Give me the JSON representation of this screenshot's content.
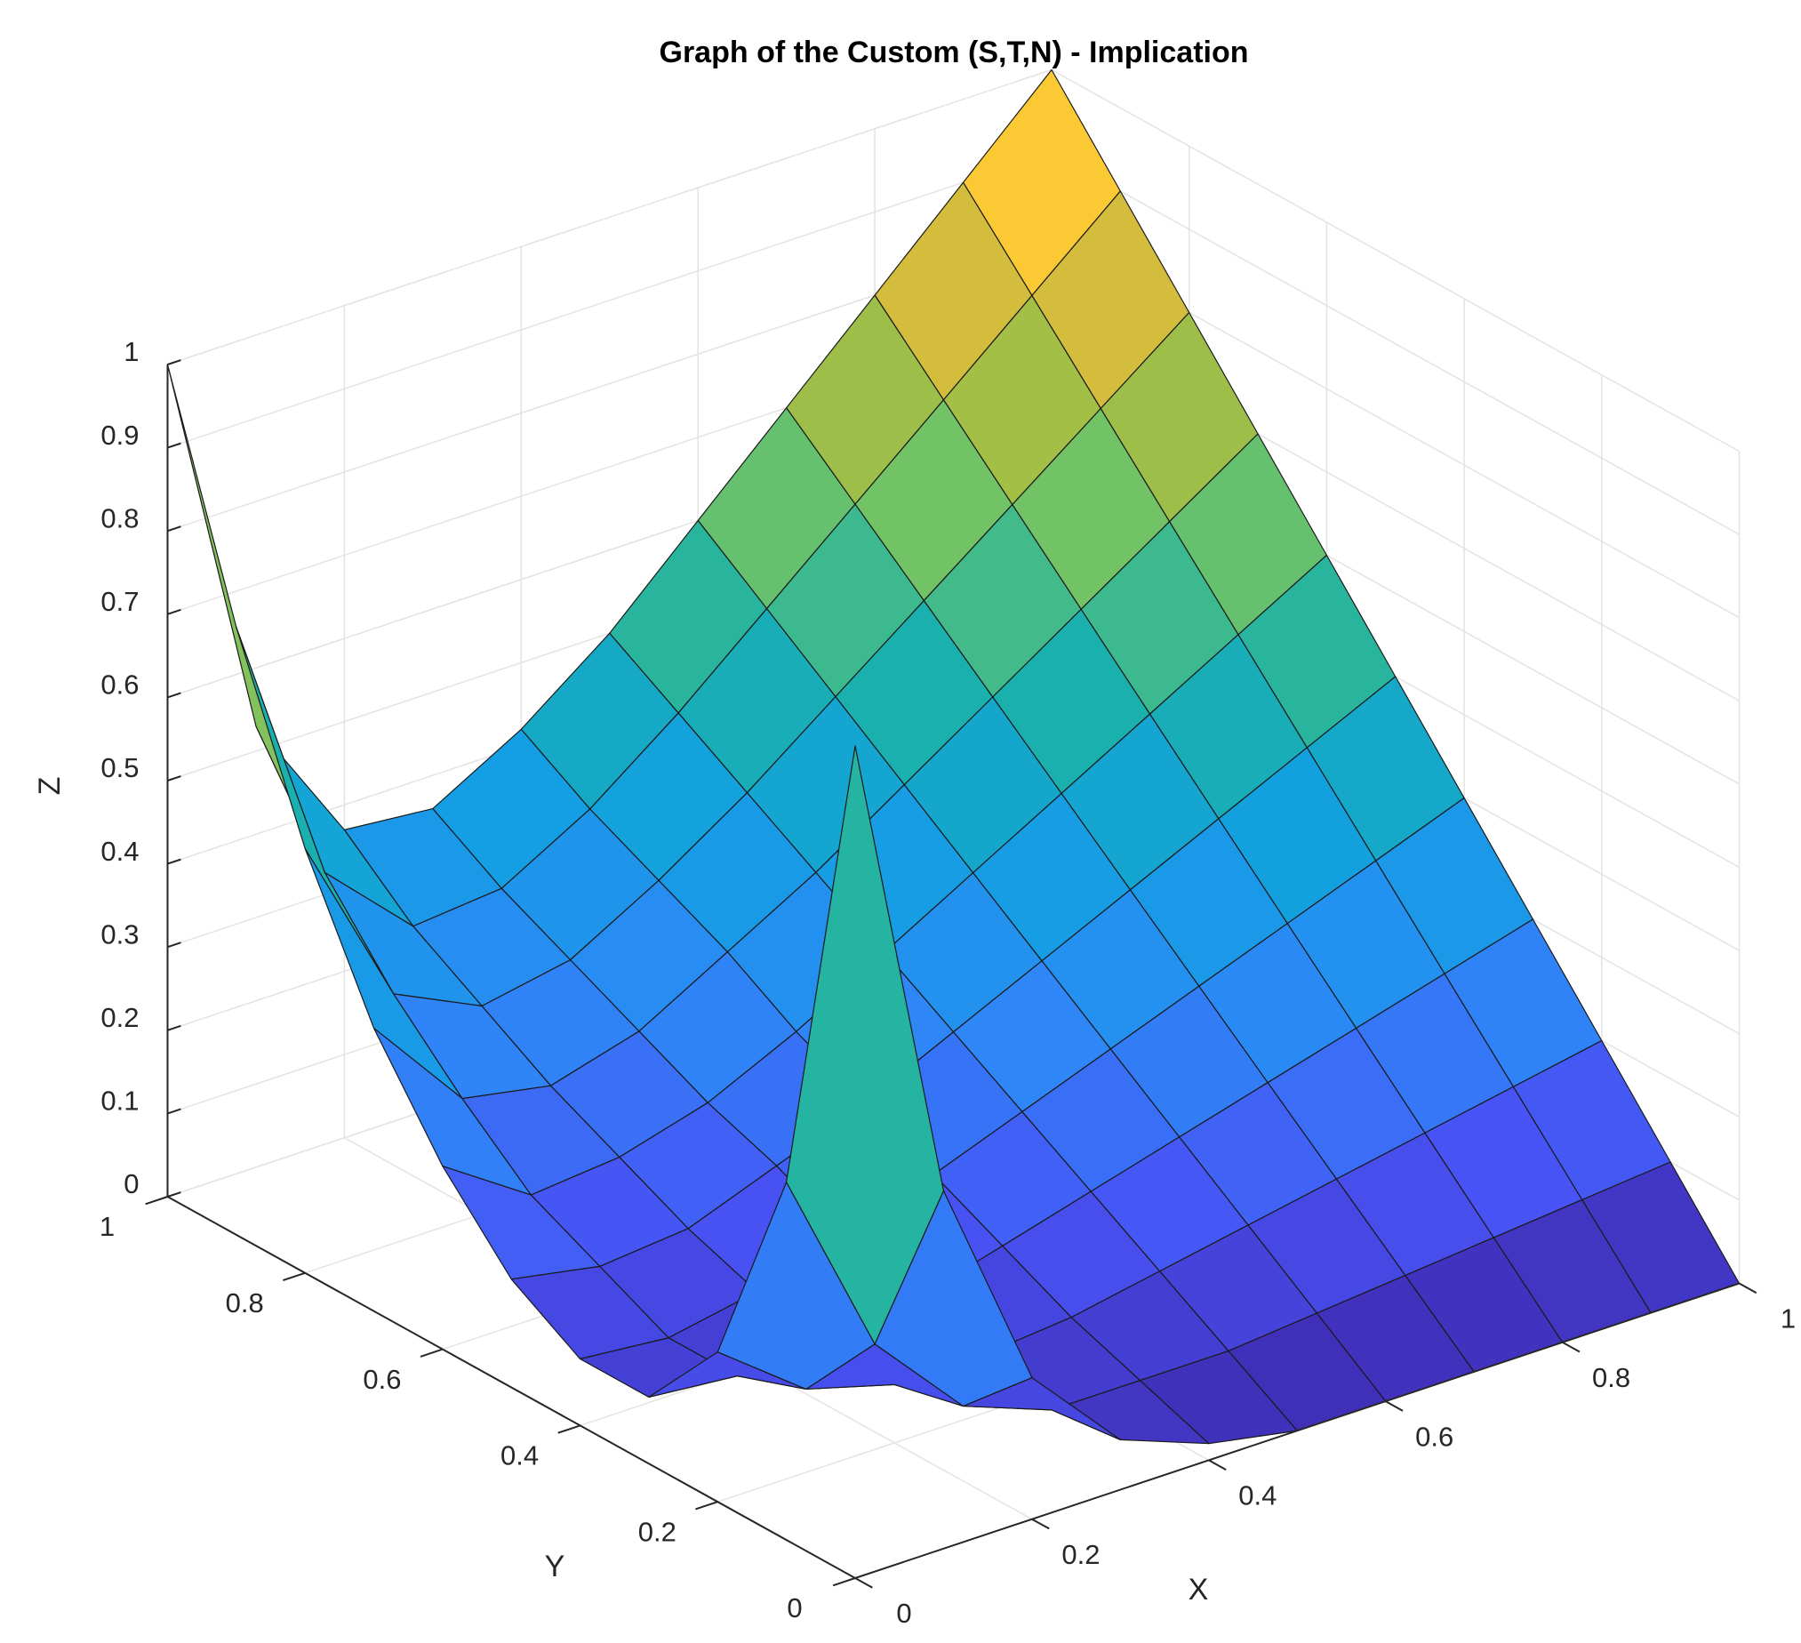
{
  "chart_data": {
    "type": "surface",
    "title": "Graph of the Custom (S,T,N) - Implication",
    "xlabel": "X",
    "ylabel": "Y",
    "zlabel": "Z",
    "x": [
      0,
      0.1,
      0.2,
      0.3,
      0.4,
      0.5,
      0.6,
      0.7,
      0.8,
      0.9,
      1
    ],
    "y": [
      0,
      0.1,
      0.2,
      0.3,
      0.4,
      0.5,
      0.6,
      0.7,
      0.8,
      0.9,
      1
    ],
    "z": [
      [
        1,
        0.43,
        0.17,
        0.06,
        0.02,
        0,
        0,
        0,
        0,
        0,
        0
      ],
      [
        0.43,
        0.2,
        0.09,
        0.05,
        0.05,
        0.05,
        0.06,
        0.07,
        0.08,
        0.09,
        0.1
      ],
      [
        0.18,
        0.1,
        0.07,
        0.07,
        0.08,
        0.1,
        0.12,
        0.14,
        0.16,
        0.18,
        0.2
      ],
      [
        0.08,
        0.07,
        0.07,
        0.09,
        0.12,
        0.15,
        0.18,
        0.21,
        0.24,
        0.27,
        0.3
      ],
      [
        0.08,
        0.07,
        0.09,
        0.12,
        0.16,
        0.2,
        0.24,
        0.28,
        0.32,
        0.36,
        0.4
      ],
      [
        0.13,
        0.11,
        0.12,
        0.16,
        0.2,
        0.25,
        0.3,
        0.35,
        0.4,
        0.45,
        0.5
      ],
      [
        0.22,
        0.15,
        0.16,
        0.19,
        0.24,
        0.3,
        0.36,
        0.42,
        0.48,
        0.54,
        0.6
      ],
      [
        0.34,
        0.22,
        0.2,
        0.23,
        0.29,
        0.35,
        0.42,
        0.49,
        0.56,
        0.63,
        0.7
      ],
      [
        0.51,
        0.3,
        0.25,
        0.27,
        0.33,
        0.4,
        0.48,
        0.56,
        0.64,
        0.72,
        0.8
      ],
      [
        0.73,
        0.4,
        0.3,
        0.31,
        0.37,
        0.45,
        0.54,
        0.63,
        0.72,
        0.81,
        0.9
      ],
      [
        1,
        0.53,
        0.37,
        0.36,
        0.42,
        0.5,
        0.6,
        0.7,
        0.8,
        0.9,
        1
      ]
    ],
    "xlim": [
      0,
      1
    ],
    "ylim": [
      0,
      1
    ],
    "zlim": [
      0,
      1
    ],
    "xticks": [
      0,
      0.2,
      0.4,
      0.6,
      0.8,
      1
    ],
    "yticks": [
      0,
      0.2,
      0.4,
      0.6,
      0.8,
      1
    ],
    "zticks": [
      0,
      0.1,
      0.2,
      0.3,
      0.4,
      0.5,
      0.6,
      0.7,
      0.8,
      0.9,
      1
    ],
    "grid": true,
    "colormap": [
      "#3e26a8",
      "#4852f4",
      "#2d87f7",
      "#12a0e1",
      "#1ab2a8",
      "#6bc26b",
      "#b3be3c",
      "#fbbb3c",
      "#f9fb15"
    ],
    "edgecolor": "#1a1a1a"
  }
}
